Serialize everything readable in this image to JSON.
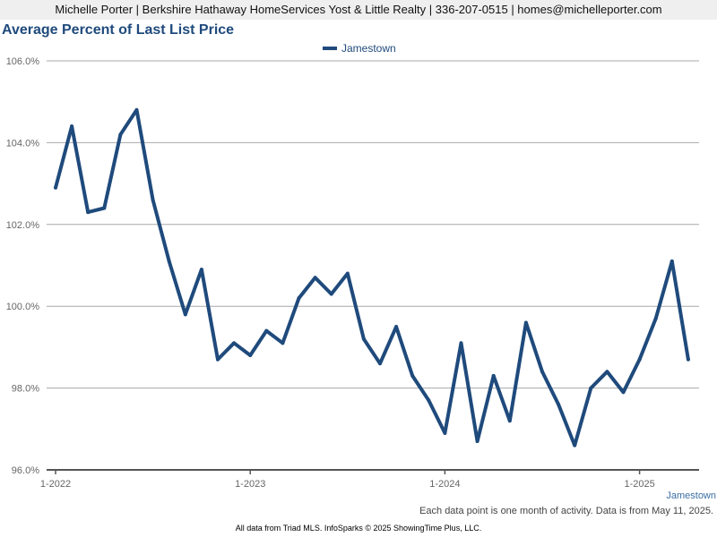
{
  "header": {
    "contact_line": "Michelle Porter | Berkshire Hathaway HomeServices Yost & Little Realty | 336-207-0515 | homes@michelleporter.com"
  },
  "chart_data": {
    "type": "line",
    "title": "Average Percent of Last List Price",
    "legend_position": "top-center",
    "grid": true,
    "ylim": [
      96,
      106
    ],
    "yticks": [
      "106.0%",
      "104.0%",
      "102.0%",
      "100.0%",
      "98.0%",
      "96.0%"
    ],
    "ytick_values": [
      106,
      104,
      102,
      100,
      98,
      96
    ],
    "xticks": [
      "1-2022",
      "1-2023",
      "1-2024",
      "1-2025"
    ],
    "xtick_indices": [
      0,
      12,
      24,
      36
    ],
    "x": [
      "1-2022",
      "2-2022",
      "3-2022",
      "4-2022",
      "5-2022",
      "6-2022",
      "7-2022",
      "8-2022",
      "9-2022",
      "10-2022",
      "11-2022",
      "12-2022",
      "1-2023",
      "2-2023",
      "3-2023",
      "4-2023",
      "5-2023",
      "6-2023",
      "7-2023",
      "8-2023",
      "9-2023",
      "10-2023",
      "11-2023",
      "12-2023",
      "1-2024",
      "2-2024",
      "3-2024",
      "4-2024",
      "5-2024",
      "6-2024",
      "7-2024",
      "8-2024",
      "9-2024",
      "10-2024",
      "11-2024",
      "12-2024",
      "1-2025",
      "2-2025",
      "3-2025",
      "4-2025"
    ],
    "series": [
      {
        "name": "Jamestown",
        "color": "#1f4a7c",
        "values": [
          102.9,
          104.4,
          102.3,
          102.4,
          104.2,
          104.8,
          102.6,
          101.1,
          99.8,
          100.9,
          98.7,
          99.1,
          98.8,
          99.4,
          99.1,
          100.2,
          100.7,
          100.3,
          100.8,
          99.2,
          98.6,
          99.5,
          98.3,
          97.7,
          96.9,
          99.1,
          96.7,
          98.3,
          97.2,
          99.6,
          98.4,
          97.6,
          96.6,
          98.0,
          98.4,
          97.9,
          98.7,
          99.7,
          101.1,
          98.7
        ]
      }
    ],
    "corner_label": "Jamestown",
    "footnote": "Each data point is one month of activity. Data is from May 11, 2025.",
    "credit": "All data from Triad MLS. InfoSparks © 2025 ShowingTime Plus, LLC."
  }
}
